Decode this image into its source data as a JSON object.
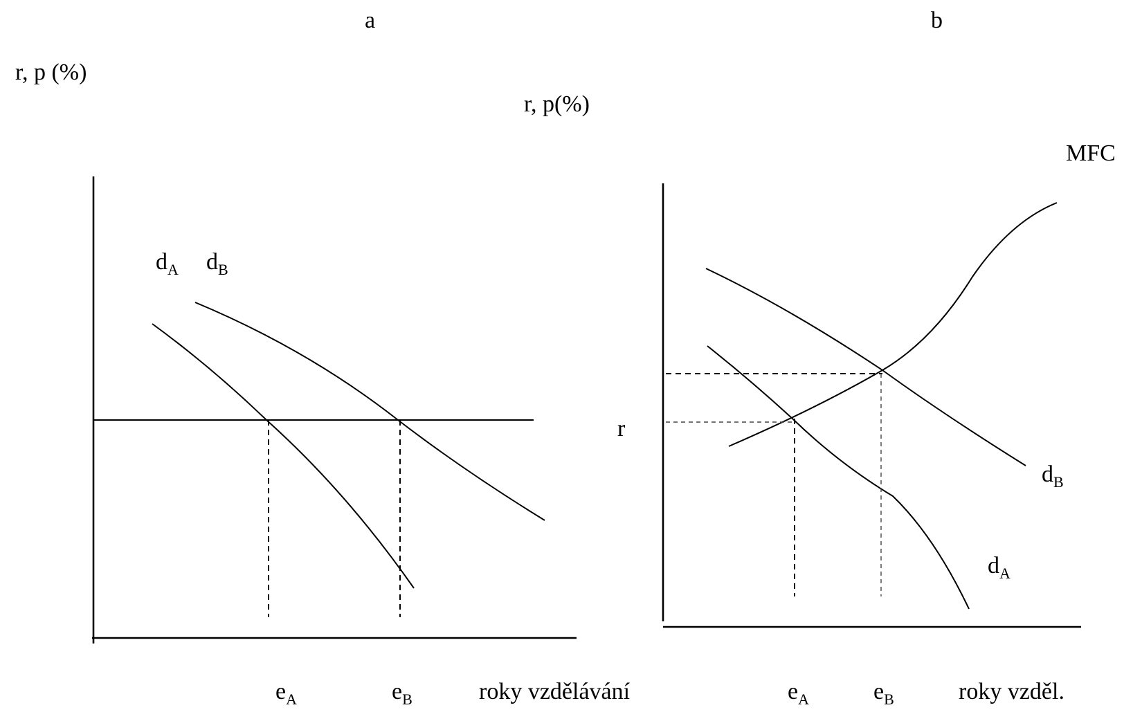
{
  "panel_a": {
    "title": "a",
    "y_axis_label": "r, p (%)",
    "curves": {
      "dA": {
        "letter": "d",
        "subscript": "A"
      },
      "dB": {
        "letter": "d",
        "subscript": "B"
      }
    },
    "ticks": {
      "eA": {
        "letter": "e",
        "subscript": "A"
      },
      "eB": {
        "letter": "e",
        "subscript": "B"
      }
    },
    "x_axis_label": "roky vzdělávání"
  },
  "panel_b": {
    "title": "b",
    "y_axis_label": "r, p(%)",
    "mfc_label": "MFC",
    "r_label": "r",
    "curves": {
      "dB": {
        "letter": "d",
        "subscript": "B"
      },
      "dA": {
        "letter": "d",
        "subscript": "A"
      }
    },
    "ticks": {
      "eA": {
        "letter": "e",
        "subscript": "A"
      },
      "eB": {
        "letter": "e",
        "subscript": "B"
      }
    },
    "x_axis_label": "roky vzděl."
  }
}
